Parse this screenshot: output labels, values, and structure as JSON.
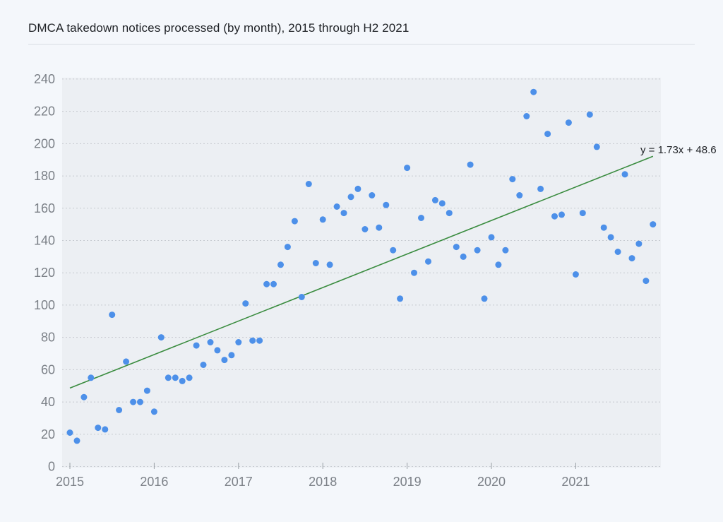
{
  "title": "DMCA takedown notices processed (by month), 2015 through H2 2021",
  "chart_data": {
    "type": "scatter",
    "title": "DMCA takedown notices processed (by month), 2015 through H2 2021",
    "xlabel": "",
    "ylabel": "",
    "start_year": 2015,
    "end_year": 2021,
    "points_per_year": 12,
    "x_tick_labels": [
      "2015",
      "2016",
      "2017",
      "2018",
      "2019",
      "2020",
      "2021"
    ],
    "y_ticks": [
      0,
      20,
      40,
      60,
      80,
      100,
      120,
      140,
      160,
      180,
      200,
      220,
      240
    ],
    "ylim": [
      0,
      240
    ],
    "grid": "horizontal-dashed",
    "legend": "none",
    "values_by_year": {
      "2015": [
        21,
        16,
        43,
        55,
        24,
        23,
        94,
        35,
        65,
        40,
        40,
        47
      ],
      "2016": [
        34,
        80,
        55,
        55,
        53,
        55,
        75,
        63,
        77,
        72,
        66,
        69
      ],
      "2017": [
        77,
        101,
        78,
        78,
        113,
        113,
        125,
        136,
        152,
        105,
        175,
        126
      ],
      "2018": [
        153,
        125,
        161,
        157,
        167,
        172,
        147,
        168,
        148,
        162,
        134,
        104
      ],
      "2019": [
        185,
        120,
        154,
        127,
        165,
        163,
        157,
        136,
        130,
        187,
        134,
        104
      ],
      "2020": [
        142,
        125,
        134,
        178,
        168,
        217,
        232,
        172,
        206,
        155,
        156,
        213
      ],
      "2021": [
        119,
        157,
        218,
        198,
        148,
        142,
        133,
        181,
        129,
        138,
        115,
        150
      ]
    },
    "trendline": {
      "label": "y = 1.73x + 48.6",
      "slope": 1.73,
      "intercept": 48.6,
      "x_domain_month_index": [
        0,
        83
      ]
    },
    "colors": {
      "point": "#4D90E9",
      "trendline": "#3A8C3F",
      "plot_background": "#ECEFF3",
      "page_background": "#F4F7FB",
      "gridline": "#C6CAD0",
      "tick_label": "#7B8087",
      "equation_label": "#202327",
      "title_text": "#1E2125"
    }
  }
}
